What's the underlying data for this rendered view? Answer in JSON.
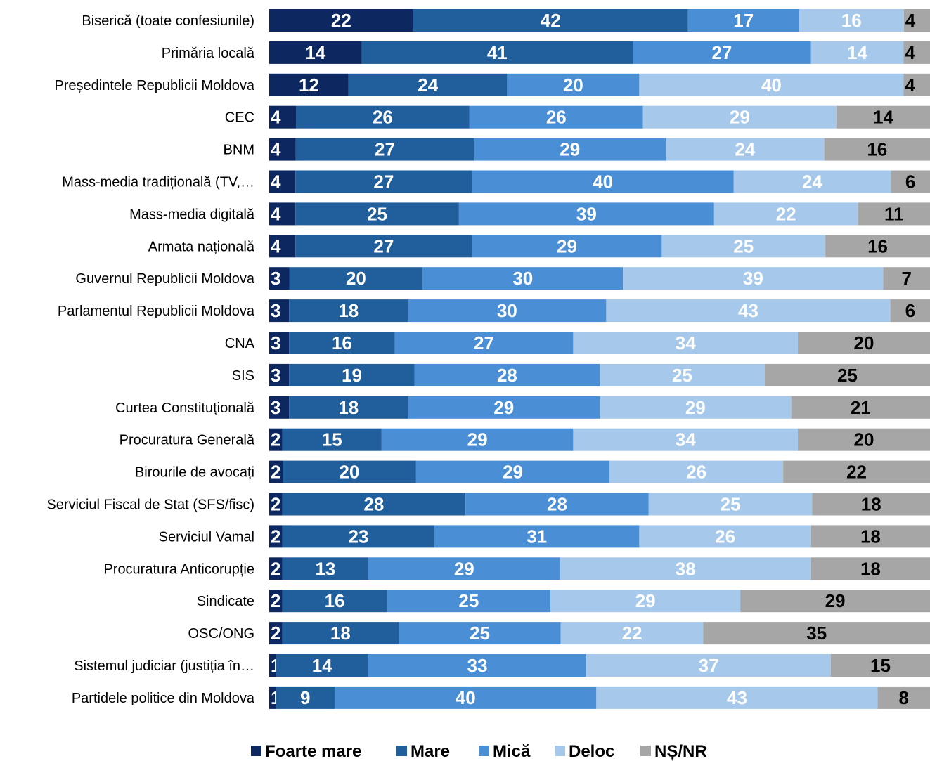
{
  "chart_data": {
    "type": "bar",
    "orientation": "horizontal",
    "stacked": true,
    "legend_position": "bottom",
    "grid": false,
    "xlim": [
      0,
      100
    ],
    "categories": [
      "Biserică (toate confesiunile)",
      "Primăria locală",
      "Președintele Republicii Moldova",
      "CEC",
      "BNM",
      "Mass-media tradițională (TV,…",
      "Mass-media digitală",
      "Armata națională",
      "Guvernul Republicii Moldova",
      "Parlamentul Republicii Moldova",
      "CNA",
      "SIS",
      "Curtea Constituțională",
      "Procuratura Generală",
      "Birourile de avocați",
      "Serviciul Fiscal de Stat (SFS/fisc)",
      "Serviciul Vamal",
      "Procuratura Anticorupție",
      "Sindicate",
      "OSC/ONG",
      "Sistemul judiciar (justiția în…",
      "Partidele politice din Moldova"
    ],
    "series": [
      {
        "name": "Foarte mare",
        "color": "#0d2760",
        "label_color": "#ffffff",
        "values": [
          22,
          14,
          12,
          4,
          4,
          4,
          4,
          4,
          3,
          3,
          3,
          3,
          3,
          2,
          2,
          2,
          2,
          2,
          2,
          2,
          1,
          1
        ]
      },
      {
        "name": "Mare",
        "color": "#215e9c",
        "label_color": "#ffffff",
        "values": [
          42,
          41,
          24,
          26,
          27,
          27,
          25,
          27,
          20,
          18,
          16,
          19,
          18,
          15,
          20,
          28,
          23,
          13,
          16,
          18,
          14,
          9
        ]
      },
      {
        "name": "Mică",
        "color": "#4a8fd6",
        "label_color": "#ffffff",
        "values": [
          17,
          27,
          20,
          26,
          29,
          40,
          39,
          29,
          30,
          30,
          27,
          28,
          29,
          29,
          29,
          28,
          31,
          29,
          25,
          25,
          33,
          40
        ]
      },
      {
        "name": "Deloc",
        "color": "#a6c9eb",
        "label_color": "#ffffff",
        "values": [
          16,
          14,
          40,
          29,
          24,
          24,
          22,
          25,
          39,
          43,
          34,
          25,
          29,
          34,
          26,
          25,
          26,
          38,
          29,
          22,
          37,
          43
        ]
      },
      {
        "name": "NȘ/NR",
        "color": "#a6a6a6",
        "label_color": "#000000",
        "values": [
          4,
          4,
          4,
          14,
          16,
          6,
          11,
          16,
          7,
          6,
          20,
          25,
          21,
          20,
          22,
          18,
          18,
          18,
          29,
          35,
          15,
          8
        ]
      }
    ]
  }
}
